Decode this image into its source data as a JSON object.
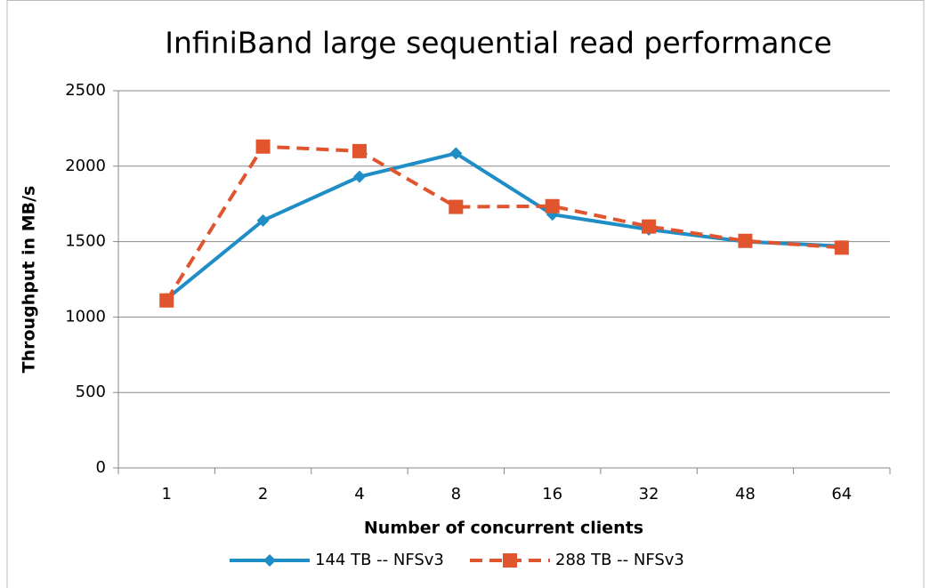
{
  "chart_data": {
    "type": "line",
    "title": "InfiniBand large sequential read performance",
    "x_label": "Number of concurrent clients",
    "y_label": "Throughput in MB/s",
    "categories": [
      "1",
      "2",
      "4",
      "8",
      "16",
      "32",
      "48",
      "64"
    ],
    "series": [
      {
        "name": "144 TB -- NFSv3",
        "color": "#1f8dc6",
        "marker": "diamond",
        "dash": false,
        "values": [
          1120,
          1640,
          1930,
          2085,
          1680,
          1580,
          1500,
          1470
        ]
      },
      {
        "name": "288 TB -- NFSv3",
        "color": "#e0542e",
        "marker": "square",
        "dash": true,
        "values": [
          1110,
          2130,
          2100,
          1730,
          1735,
          1600,
          1505,
          1460
        ]
      }
    ],
    "ylim": [
      0,
      2500
    ],
    "yticks": [
      0,
      500,
      1000,
      1500,
      2000,
      2500
    ],
    "grid": true,
    "legend": "bottom"
  }
}
